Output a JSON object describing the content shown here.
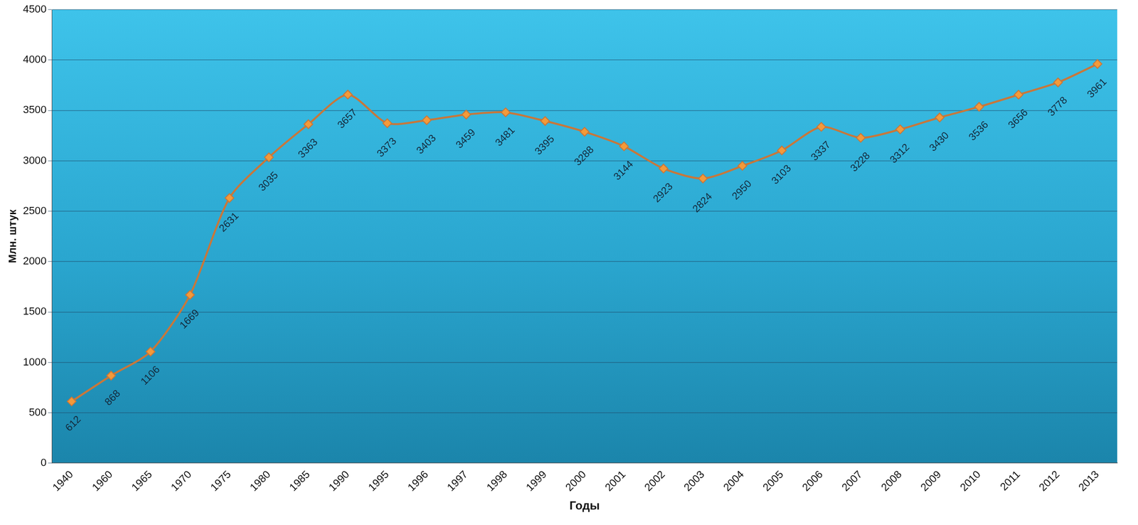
{
  "chart_data": {
    "type": "line",
    "x_label": "Годы",
    "y_label": "Млн. штук",
    "categories": [
      "1940",
      "1960",
      "1965",
      "1970",
      "1975",
      "1980",
      "1985",
      "1990",
      "1995",
      "1996",
      "1997",
      "1998",
      "1999",
      "2000",
      "2001",
      "2002",
      "2003",
      "2004",
      "2005",
      "2006",
      "2007",
      "2008",
      "2009",
      "2010",
      "2011",
      "2012",
      "2013"
    ],
    "values": [
      612,
      868,
      1106,
      1669,
      2631,
      3035,
      3363,
      3657,
      3373,
      3403,
      3459,
      3481,
      3395,
      3288,
      3144,
      2923,
      2824,
      2950,
      3103,
      3337,
      3228,
      3312,
      3430,
      3536,
      3656,
      3778,
      3961
    ],
    "color": "#c8773a",
    "marker": "diamond",
    "ylim": [
      0,
      4500
    ],
    "yticks": [
      0,
      500,
      1000,
      1500,
      2000,
      2500,
      3000,
      3500,
      4000,
      4500
    ],
    "grid": true,
    "data_labels": true
  }
}
